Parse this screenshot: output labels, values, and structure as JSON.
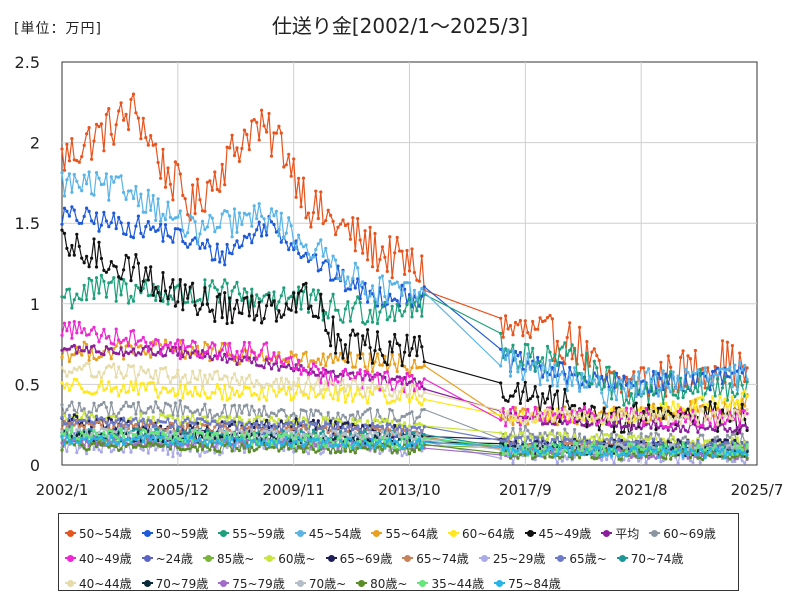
{
  "header": {
    "unit_label": "[単位：万円]",
    "title": "仕送り金[2002/1～2025/3]"
  },
  "chart_data": {
    "type": "line",
    "title": "仕送り金[2002/1～2025/3]",
    "unit": "[単位：万円]",
    "xlim": [
      "2002/1",
      "2025/7"
    ],
    "ylim": [
      0,
      2.5
    ],
    "x_tick_labels": [
      "2002/1",
      "2005/12",
      "2009/11",
      "2013/10",
      "2017/9",
      "2021/8",
      "2025/7"
    ],
    "y_tick_labels": [
      "0",
      "0.5",
      "1",
      "1.5",
      "2",
      "2.5"
    ],
    "grid": true,
    "legend_position": "bottom",
    "data_gap": [
      "2014/4",
      "2016/11"
    ],
    "series": [
      {
        "name": "50~54歳",
        "color": "#e8541e",
        "anchors": [
          [
            "2002/1",
            1.9
          ],
          [
            "2004/7",
            2.2
          ],
          [
            "2005/6",
            1.85
          ],
          [
            "2006/6",
            1.6
          ],
          [
            "2008/6",
            2.1
          ],
          [
            "2009/6",
            2.0
          ],
          [
            "2010/6",
            1.6
          ],
          [
            "2012/6",
            1.35
          ],
          [
            "2014/3",
            1.2
          ],
          [
            "2017/1",
            0.85
          ],
          [
            "2019/6",
            0.75
          ],
          [
            "2020/6",
            0.5
          ],
          [
            "2021/1",
            0.5
          ],
          [
            "2022/6",
            0.55
          ],
          [
            "2024/6",
            0.65
          ],
          [
            "2025/3",
            0.55
          ]
        ],
        "noise": 0.14
      },
      {
        "name": "50~59歳",
        "color": "#1e5ad8",
        "anchors": [
          [
            "2002/1",
            1.55
          ],
          [
            "2005/6",
            1.45
          ],
          [
            "2007/6",
            1.3
          ],
          [
            "2009/1",
            1.5
          ],
          [
            "2011/1",
            1.2
          ],
          [
            "2012/6",
            1.05
          ],
          [
            "2014/3",
            1.05
          ],
          [
            "2017/1",
            0.65
          ],
          [
            "2020/6",
            0.5
          ],
          [
            "2021/1",
            0.5
          ],
          [
            "2025/3",
            0.55
          ]
        ],
        "noise": 0.07
      },
      {
        "name": "55~59歳",
        "color": "#1ea07a",
        "anchors": [
          [
            "2002/1",
            1.05
          ],
          [
            "2004/1",
            1.1
          ],
          [
            "2006/6",
            1.05
          ],
          [
            "2009/6",
            1.05
          ],
          [
            "2011/6",
            0.95
          ],
          [
            "2014/3",
            1.0
          ],
          [
            "2017/1",
            0.7
          ],
          [
            "2019/6",
            0.65
          ],
          [
            "2021/1",
            0.45
          ],
          [
            "2023/6",
            0.5
          ],
          [
            "2025/3",
            0.45
          ]
        ],
        "noise": 0.1
      },
      {
        "name": "45~54歳",
        "color": "#5ab4e6",
        "anchors": [
          [
            "2002/1",
            1.75
          ],
          [
            "2004/6",
            1.7
          ],
          [
            "2006/6",
            1.45
          ],
          [
            "2009/1",
            1.55
          ],
          [
            "2010/6",
            1.35
          ],
          [
            "2012/6",
            1.1
          ],
          [
            "2014/3",
            1.05
          ],
          [
            "2017/1",
            0.65
          ],
          [
            "2020/6",
            0.45
          ],
          [
            "2021/1",
            0.5
          ],
          [
            "2025/3",
            0.55
          ]
        ],
        "noise": 0.09
      },
      {
        "name": "55~64歳",
        "color": "#e8a01e",
        "anchors": [
          [
            "2002/1",
            0.7
          ],
          [
            "2006/1",
            0.72
          ],
          [
            "2010/1",
            0.65
          ],
          [
            "2014/3",
            0.62
          ],
          [
            "2017/1",
            0.3
          ],
          [
            "2021/1",
            0.3
          ],
          [
            "2025/3",
            0.38
          ]
        ],
        "noise": 0.06
      },
      {
        "name": "60~64歳",
        "color": "#ffe81e",
        "anchors": [
          [
            "2002/1",
            0.5
          ],
          [
            "2006/1",
            0.45
          ],
          [
            "2010/1",
            0.45
          ],
          [
            "2014/3",
            0.42
          ],
          [
            "2017/1",
            0.3
          ],
          [
            "2021/1",
            0.3
          ],
          [
            "2025/3",
            0.42
          ]
        ],
        "noise": 0.05
      },
      {
        "name": "45~49歳",
        "color": "#111111",
        "anchors": [
          [
            "2002/1",
            1.35
          ],
          [
            "2004/1",
            1.25
          ],
          [
            "2006/1",
            1.05
          ],
          [
            "2008/1",
            0.95
          ],
          [
            "2010/6",
            1.05
          ],
          [
            "2011/6",
            0.75
          ],
          [
            "2014/3",
            0.7
          ],
          [
            "2017/1",
            0.45
          ],
          [
            "2020/6",
            0.3
          ],
          [
            "2021/1",
            0.3
          ],
          [
            "2025/3",
            0.3
          ]
        ],
        "noise": 0.11
      },
      {
        "name": "平均",
        "color": "#8a1e9c",
        "anchors": [
          [
            "2002/1",
            0.72
          ],
          [
            "2006/1",
            0.7
          ],
          [
            "2010/1",
            0.6
          ],
          [
            "2014/3",
            0.5
          ],
          [
            "2017/1",
            0.3
          ],
          [
            "2021/1",
            0.25
          ],
          [
            "2025/3",
            0.22
          ]
        ],
        "noise": 0.03
      },
      {
        "name": "60~69歳",
        "color": "#8c96a0",
        "anchors": [
          [
            "2002/1",
            0.35
          ],
          [
            "2006/1",
            0.35
          ],
          [
            "2010/1",
            0.3
          ],
          [
            "2014/3",
            0.3
          ],
          [
            "2017/1",
            0.2
          ],
          [
            "2021/1",
            0.15
          ],
          [
            "2025/3",
            0.15
          ]
        ],
        "noise": 0.05
      },
      {
        "name": "40~49歳",
        "color": "#ee28d2",
        "anchors": [
          [
            "2002/1",
            0.85
          ],
          [
            "2004/1",
            0.8
          ],
          [
            "2006/1",
            0.72
          ],
          [
            "2009/1",
            0.7
          ],
          [
            "2011/1",
            0.55
          ],
          [
            "2014/3",
            0.5
          ],
          [
            "2017/1",
            0.3
          ],
          [
            "2021/1",
            0.3
          ],
          [
            "2025/3",
            0.28
          ]
        ],
        "noise": 0.06
      },
      {
        "name": "~24歳",
        "color": "#5a64c8",
        "anchors": [
          [
            "2002/1",
            0.2
          ],
          [
            "2014/3",
            0.15
          ],
          [
            "2017/1",
            0.12
          ],
          [
            "2025/3",
            0.1
          ]
        ],
        "noise": 0.04
      },
      {
        "name": "85歳~",
        "color": "#7ab43c",
        "anchors": [
          [
            "2002/1",
            0.15
          ],
          [
            "2014/3",
            0.12
          ],
          [
            "2017/1",
            0.1
          ],
          [
            "2025/3",
            0.08
          ]
        ],
        "noise": 0.03
      },
      {
        "name": "60歳~",
        "color": "#c8e63c",
        "anchors": [
          [
            "2002/1",
            0.3
          ],
          [
            "2014/3",
            0.25
          ],
          [
            "2017/1",
            0.18
          ],
          [
            "2025/3",
            0.14
          ]
        ],
        "noise": 0.03
      },
      {
        "name": "65~69歳",
        "color": "#1e1e5a",
        "anchors": [
          [
            "2002/1",
            0.28
          ],
          [
            "2006/1",
            0.22
          ],
          [
            "2010/1",
            0.25
          ],
          [
            "2014/3",
            0.2
          ],
          [
            "2017/1",
            0.12
          ],
          [
            "2025/3",
            0.12
          ]
        ],
        "noise": 0.04
      },
      {
        "name": "65~74歳",
        "color": "#c8825a",
        "anchors": [
          [
            "2002/1",
            0.25
          ],
          [
            "2014/3",
            0.2
          ],
          [
            "2017/1",
            0.12
          ],
          [
            "2025/3",
            0.1
          ]
        ],
        "noise": 0.03
      },
      {
        "name": "25~29歳",
        "color": "#aaaae6",
        "anchors": [
          [
            "2002/1",
            0.12
          ],
          [
            "2006/1",
            0.1
          ],
          [
            "2010/1",
            0.12
          ],
          [
            "2014/3",
            0.1
          ],
          [
            "2017/1",
            0.06
          ],
          [
            "2025/3",
            0.06
          ]
        ],
        "noise": 0.05
      },
      {
        "name": "65歳~",
        "color": "#6e7cc8",
        "anchors": [
          [
            "2002/1",
            0.28
          ],
          [
            "2014/3",
            0.22
          ],
          [
            "2017/1",
            0.15
          ],
          [
            "2025/3",
            0.12
          ]
        ],
        "noise": 0.03
      },
      {
        "name": "70~74歳",
        "color": "#1e9696",
        "anchors": [
          [
            "2002/1",
            0.2
          ],
          [
            "2014/3",
            0.18
          ],
          [
            "2017/1",
            0.1
          ],
          [
            "2025/3",
            0.1
          ]
        ],
        "noise": 0.03
      },
      {
        "name": "40~44歳",
        "color": "#e6dcaa",
        "anchors": [
          [
            "2002/1",
            0.6
          ],
          [
            "2006/1",
            0.55
          ],
          [
            "2010/1",
            0.5
          ],
          [
            "2014/3",
            0.45
          ],
          [
            "2017/1",
            0.3
          ],
          [
            "2025/3",
            0.3
          ]
        ],
        "noise": 0.05
      },
      {
        "name": "70~79歳",
        "color": "#0a2a3a",
        "anchors": [
          [
            "2002/1",
            0.18
          ],
          [
            "2014/3",
            0.15
          ],
          [
            "2017/1",
            0.1
          ],
          [
            "2025/3",
            0.08
          ]
        ],
        "noise": 0.03
      },
      {
        "name": "75~79歳",
        "color": "#a06ec8",
        "anchors": [
          [
            "2002/1",
            0.15
          ],
          [
            "2014/3",
            0.12
          ],
          [
            "2017/1",
            0.08
          ],
          [
            "2025/3",
            0.06
          ]
        ],
        "noise": 0.03
      },
      {
        "name": "70歳~",
        "color": "#b4bec8",
        "anchors": [
          [
            "2002/1",
            0.2
          ],
          [
            "2014/3",
            0.18
          ],
          [
            "2017/1",
            0.1
          ],
          [
            "2025/3",
            0.1
          ]
        ],
        "noise": 0.03
      },
      {
        "name": "80歳~",
        "color": "#5a8c28",
        "anchors": [
          [
            "2002/1",
            0.12
          ],
          [
            "2014/3",
            0.1
          ],
          [
            "2017/1",
            0.07
          ],
          [
            "2025/3",
            0.06
          ]
        ],
        "noise": 0.03
      },
      {
        "name": "35~44歳",
        "color": "#64e678",
        "anchors": [
          [
            "2002/1",
            0.2
          ],
          [
            "2006/1",
            0.18
          ],
          [
            "2010/1",
            0.15
          ],
          [
            "2014/3",
            0.14
          ],
          [
            "2017/1",
            0.1
          ],
          [
            "2025/3",
            0.1
          ]
        ],
        "noise": 0.04
      },
      {
        "name": "75~84歳",
        "color": "#28b4e6",
        "anchors": [
          [
            "2002/1",
            0.16
          ],
          [
            "2014/3",
            0.13
          ],
          [
            "2017/1",
            0.09
          ],
          [
            "2025/3",
            0.07
          ]
        ],
        "noise": 0.03
      }
    ]
  }
}
